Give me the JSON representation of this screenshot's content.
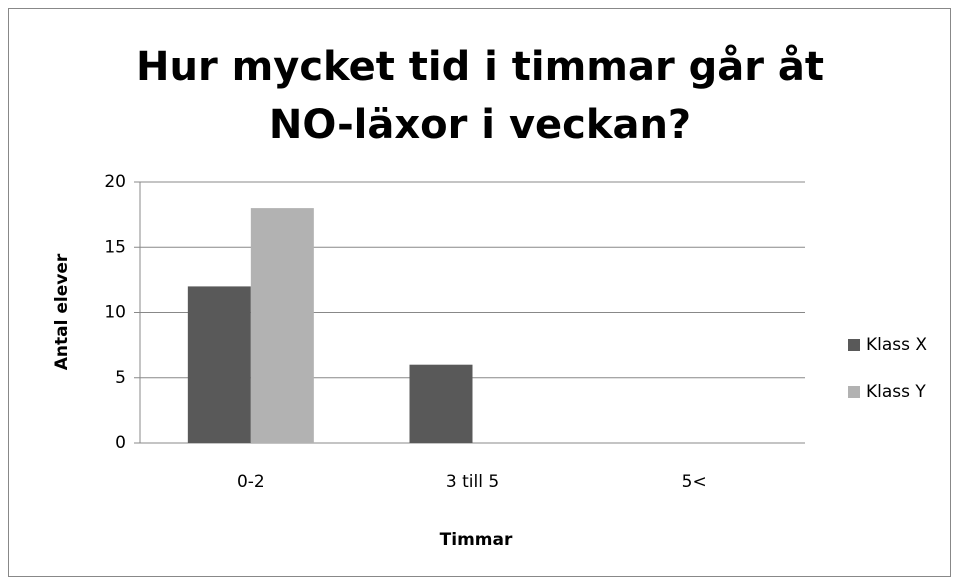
{
  "chart_data": {
    "type": "bar",
    "title": "Hur mycket tid i timmar går åt NO-läxor i veckan?",
    "x_label": "Timmar",
    "y_label": "Antal elever",
    "categories": [
      "0-2",
      "3 till 5",
      "5<"
    ],
    "series": [
      {
        "name": "Klass X",
        "color": "#595959",
        "values": [
          12,
          6,
          0
        ]
      },
      {
        "name": "Klass Y",
        "color": "#b2b2b2",
        "values": [
          18,
          0,
          0
        ]
      }
    ],
    "ylim": [
      0,
      20
    ],
    "yticks": [
      0,
      5,
      10,
      15,
      20
    ],
    "grid": true,
    "legend": "right"
  }
}
